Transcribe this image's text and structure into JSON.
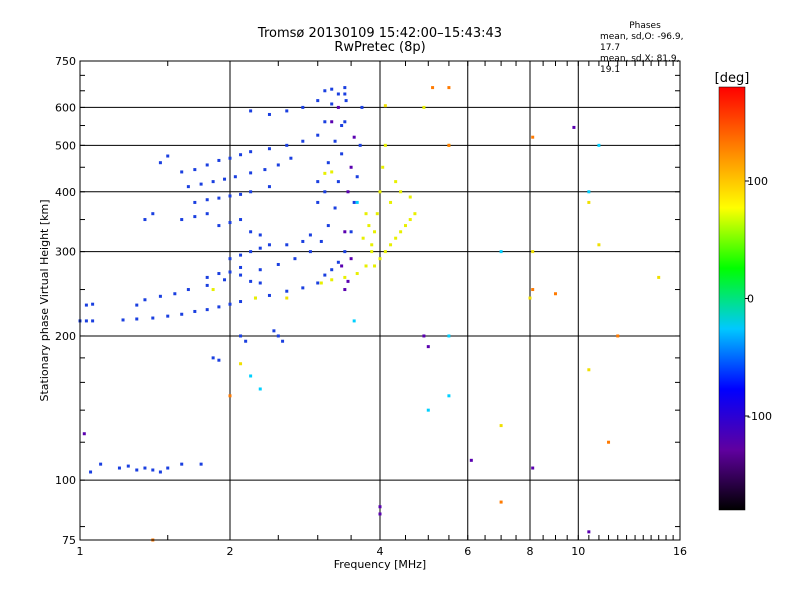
{
  "chart_data": {
    "type": "scatter",
    "title_line1": "Tromsø 20130109 15:42:00–15:43:43",
    "title_line2": "RwPretec (8p)",
    "xlabel": "Frequency [MHz]",
    "ylabel": "Stationary phase Virtual Height [km]",
    "x_scale": "log",
    "y_scale": "log",
    "xlim": [
      1,
      16
    ],
    "ylim": [
      75,
      750
    ],
    "x_ticks": [
      1,
      2,
      4,
      6,
      8,
      10,
      16
    ],
    "x_tick_labels": [
      "1",
      "2",
      "4",
      "6",
      "8",
      "10",
      "16"
    ],
    "y_ticks": [
      75,
      100,
      200,
      300,
      400,
      500,
      600,
      750
    ],
    "y_tick_labels": [
      "75",
      "100",
      "200",
      "300",
      "400",
      "500",
      "600",
      "750"
    ],
    "grid": true,
    "phase_stats": {
      "header": "Phases",
      "line1": "mean, sd,O: -96.9, 17.7",
      "line2": "mean, sd,X: 81.9, 19.1"
    },
    "colorbar": {
      "label": "[deg]",
      "range": [
        -180,
        180
      ],
      "ticks": [
        100,
        0,
        -100
      ],
      "tick_labels": [
        "100",
        "0",
        "-100"
      ],
      "colors": [
        "#000000",
        "#6000a0",
        "#0000ff",
        "#00c8ff",
        "#00ff00",
        "#ffff00",
        "#ff8000",
        "#ff0000"
      ]
    },
    "series": [
      {
        "color": "#1a3fe0",
        "points": [
          [
            1.0,
            215
          ],
          [
            1.03,
            215
          ],
          [
            1.06,
            215
          ],
          [
            1.03,
            232
          ],
          [
            1.06,
            233
          ],
          [
            1.22,
            216
          ],
          [
            1.3,
            217
          ],
          [
            1.4,
            218
          ],
          [
            1.5,
            220
          ],
          [
            1.6,
            222
          ],
          [
            1.7,
            225
          ],
          [
            1.8,
            227
          ],
          [
            1.9,
            230
          ],
          [
            2.0,
            233
          ],
          [
            2.1,
            236
          ],
          [
            2.25,
            240
          ],
          [
            2.4,
            243
          ],
          [
            2.6,
            248
          ],
          [
            2.8,
            252
          ],
          [
            3.0,
            258
          ],
          [
            3.1,
            268
          ],
          [
            3.2,
            275
          ],
          [
            3.3,
            285
          ],
          [
            3.4,
            300
          ],
          [
            3.5,
            330
          ],
          [
            3.55,
            380
          ],
          [
            3.6,
            430
          ],
          [
            3.65,
            500
          ],
          [
            3.68,
            600
          ],
          [
            1.3,
            232
          ],
          [
            1.35,
            238
          ],
          [
            1.45,
            242
          ],
          [
            1.55,
            245
          ],
          [
            1.65,
            250
          ],
          [
            1.8,
            255
          ],
          [
            1.95,
            262
          ],
          [
            2.1,
            268
          ],
          [
            2.3,
            275
          ],
          [
            2.5,
            282
          ],
          [
            2.7,
            290
          ],
          [
            2.9,
            300
          ],
          [
            3.05,
            315
          ],
          [
            3.15,
            340
          ],
          [
            3.25,
            370
          ],
          [
            3.3,
            420
          ],
          [
            3.35,
            480
          ],
          [
            3.4,
            560
          ],
          [
            3.42,
            620
          ],
          [
            1.6,
            440
          ],
          [
            1.7,
            445
          ],
          [
            1.8,
            455
          ],
          [
            1.9,
            465
          ],
          [
            2.0,
            470
          ],
          [
            2.1,
            478
          ],
          [
            2.2,
            485
          ],
          [
            2.4,
            492
          ],
          [
            2.6,
            500
          ],
          [
            2.8,
            510
          ],
          [
            3.0,
            525
          ],
          [
            3.1,
            560
          ],
          [
            3.2,
            610
          ],
          [
            3.3,
            640
          ],
          [
            3.4,
            640
          ],
          [
            1.65,
            410
          ],
          [
            1.75,
            415
          ],
          [
            1.85,
            420
          ],
          [
            1.95,
            425
          ],
          [
            2.05,
            430
          ],
          [
            2.2,
            438
          ],
          [
            2.35,
            445
          ],
          [
            2.5,
            455
          ],
          [
            2.65,
            470
          ],
          [
            1.7,
            380
          ],
          [
            1.8,
            385
          ],
          [
            1.9,
            388
          ],
          [
            2.0,
            392
          ],
          [
            2.1,
            395
          ],
          [
            2.2,
            400
          ],
          [
            2.4,
            410
          ],
          [
            1.6,
            350
          ],
          [
            1.7,
            355
          ],
          [
            1.8,
            360
          ],
          [
            1.9,
            340
          ],
          [
            2.0,
            345
          ],
          [
            2.1,
            350
          ],
          [
            2.2,
            330
          ],
          [
            2.3,
            325
          ],
          [
            2.0,
            290
          ],
          [
            2.1,
            295
          ],
          [
            2.2,
            300
          ],
          [
            2.3,
            305
          ],
          [
            2.4,
            310
          ],
          [
            2.6,
            310
          ],
          [
            2.8,
            315
          ],
          [
            2.9,
            325
          ],
          [
            1.8,
            265
          ],
          [
            1.9,
            270
          ],
          [
            2.0,
            272
          ],
          [
            2.1,
            278
          ],
          [
            2.2,
            260
          ],
          [
            2.3,
            258
          ],
          [
            2.1,
            200
          ],
          [
            2.15,
            195
          ],
          [
            2.45,
            205
          ],
          [
            2.5,
            200
          ],
          [
            2.55,
            195
          ],
          [
            2.2,
            590
          ],
          [
            2.4,
            580
          ],
          [
            2.6,
            590
          ],
          [
            2.8,
            600
          ],
          [
            3.0,
            620
          ],
          [
            3.1,
            650
          ],
          [
            3.2,
            655
          ],
          [
            3.4,
            660
          ],
          [
            1.1,
            108
          ],
          [
            1.2,
            106
          ],
          [
            1.25,
            107
          ],
          [
            1.3,
            105
          ],
          [
            1.35,
            106
          ],
          [
            1.4,
            105
          ],
          [
            1.45,
            104
          ],
          [
            1.5,
            106
          ],
          [
            1.05,
            104
          ],
          [
            1.6,
            108
          ],
          [
            1.75,
            108
          ],
          [
            1.85,
            180
          ],
          [
            1.9,
            178
          ],
          [
            1.45,
            460
          ],
          [
            1.5,
            475
          ],
          [
            1.35,
            350
          ],
          [
            1.4,
            360
          ],
          [
            3.0,
            420
          ],
          [
            3.15,
            460
          ],
          [
            3.25,
            510
          ],
          [
            3.35,
            550
          ],
          [
            3.0,
            380
          ],
          [
            3.1,
            400
          ]
        ]
      },
      {
        "color": "#5a00b0",
        "points": [
          [
            3.35,
            280
          ],
          [
            3.4,
            330
          ],
          [
            3.45,
            400
          ],
          [
            3.5,
            450
          ],
          [
            3.55,
            520
          ],
          [
            3.4,
            250
          ],
          [
            3.45,
            260
          ],
          [
            3.5,
            290
          ],
          [
            3.3,
            600
          ],
          [
            3.2,
            560
          ],
          [
            4.9,
            200
          ],
          [
            5.0,
            190
          ],
          [
            4.0,
            88
          ],
          [
            4.0,
            85
          ],
          [
            10.5,
            78
          ],
          [
            6.1,
            110
          ],
          [
            8.1,
            106
          ],
          [
            9.8,
            545
          ],
          [
            1.02,
            125
          ]
        ]
      },
      {
        "color": "#e8f000",
        "points": [
          [
            3.05,
            258
          ],
          [
            3.2,
            262
          ],
          [
            3.4,
            265
          ],
          [
            3.6,
            270
          ],
          [
            3.75,
            280
          ],
          [
            3.85,
            300
          ],
          [
            3.9,
            330
          ],
          [
            3.95,
            360
          ],
          [
            4.0,
            400
          ],
          [
            4.05,
            450
          ],
          [
            4.1,
            500
          ],
          [
            4.1,
            300
          ],
          [
            4.2,
            310
          ],
          [
            4.3,
            320
          ],
          [
            4.4,
            330
          ],
          [
            4.5,
            340
          ],
          [
            4.6,
            350
          ],
          [
            4.7,
            360
          ],
          [
            4.2,
            380
          ],
          [
            4.4,
            400
          ],
          [
            4.3,
            420
          ],
          [
            4.6,
            390
          ],
          [
            3.7,
            320
          ],
          [
            3.8,
            340
          ],
          [
            3.75,
            360
          ],
          [
            3.85,
            310
          ],
          [
            4.0,
            290
          ],
          [
            3.9,
            280
          ],
          [
            3.1,
            437
          ],
          [
            3.2,
            440
          ],
          [
            1.85,
            250
          ],
          [
            2.25,
            240
          ],
          [
            4.9,
            600
          ],
          [
            5.5,
            500
          ]
        ]
      },
      {
        "color": "#00d0ff",
        "points": [
          [
            5.5,
            200
          ],
          [
            5.5,
            150
          ],
          [
            7.0,
            300
          ],
          [
            11.0,
            500
          ],
          [
            10.5,
            400
          ],
          [
            5.0,
            140
          ],
          [
            3.55,
            215
          ],
          [
            3.6,
            380
          ],
          [
            2.2,
            165
          ],
          [
            2.3,
            155
          ]
        ]
      },
      {
        "color": "#ff7a00",
        "points": [
          [
            5.1,
            660
          ],
          [
            5.5,
            660
          ],
          [
            5.5,
            500
          ],
          [
            7.0,
            90
          ],
          [
            8.1,
            250
          ],
          [
            8.1,
            520
          ],
          [
            11.5,
            120
          ],
          [
            12.0,
            200
          ],
          [
            1.4,
            75
          ],
          [
            2.0,
            150
          ],
          [
            9.0,
            245
          ]
        ]
      },
      {
        "color": "#f0e000",
        "points": [
          [
            14.5,
            265
          ],
          [
            11.0,
            310
          ],
          [
            10.5,
            380
          ],
          [
            10.5,
            170
          ],
          [
            7.0,
            130
          ],
          [
            8.1,
            300
          ],
          [
            8.0,
            240
          ],
          [
            2.1,
            175
          ],
          [
            4.1,
            605
          ],
          [
            2.6,
            240
          ]
        ]
      }
    ]
  }
}
